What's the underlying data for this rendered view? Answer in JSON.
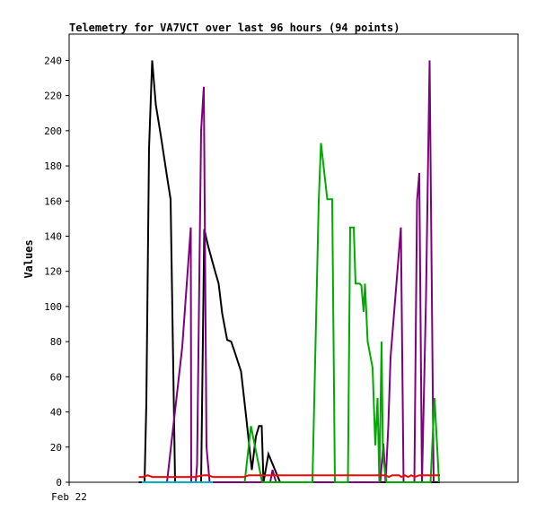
{
  "chart_data": {
    "type": "line",
    "title": "Telemetry for VA7VCT over last 96 hours (94 points)",
    "xlabel": "",
    "ylabel": "Values",
    "x_tick_labels": [
      "Feb 22"
    ],
    "xlim": [
      0,
      100
    ],
    "ylim": [
      0,
      255
    ],
    "y_ticks": [
      0,
      20,
      40,
      60,
      80,
      100,
      120,
      140,
      160,
      180,
      200,
      220,
      240
    ],
    "grid": false,
    "legend": "none",
    "series": [
      {
        "color": "#000000",
        "points": [
          [
            15.5,
            0
          ],
          [
            16.8,
            0
          ],
          [
            17.2,
            45
          ],
          [
            17.8,
            190
          ],
          [
            18.5,
            240
          ],
          [
            19.3,
            215
          ],
          [
            20.5,
            196
          ],
          [
            21.8,
            174
          ],
          [
            22.6,
            161
          ],
          [
            23.6,
            0
          ],
          [
            29.4,
            0
          ],
          [
            30.1,
            144
          ],
          [
            31.0,
            134
          ],
          [
            32.4,
            121
          ],
          [
            33.3,
            113
          ],
          [
            34.1,
            96
          ],
          [
            35.2,
            81
          ],
          [
            36.1,
            80
          ],
          [
            36.9,
            74
          ],
          [
            38.3,
            63
          ],
          [
            39.4,
            38
          ],
          [
            40.7,
            7
          ],
          [
            41.6,
            26
          ],
          [
            42.3,
            32
          ],
          [
            42.9,
            32
          ],
          [
            43.3,
            0
          ],
          [
            44.4,
            16
          ],
          [
            47.0,
            0
          ],
          [
            82.6,
            0
          ]
        ]
      },
      {
        "color": "#7f007f",
        "points": [
          [
            21.8,
            0
          ],
          [
            25.2,
            77
          ],
          [
            27.1,
            145
          ],
          [
            27.2,
            0
          ],
          [
            28.2,
            0
          ],
          [
            28.5,
            10
          ],
          [
            29.4,
            200
          ],
          [
            30.0,
            225
          ],
          [
            30.6,
            20
          ],
          [
            31.3,
            0
          ],
          [
            44.8,
            0
          ],
          [
            45.3,
            7
          ],
          [
            46.1,
            0
          ],
          [
            69.3,
            0
          ],
          [
            70.0,
            22
          ],
          [
            70.5,
            0
          ],
          [
            71.1,
            32
          ],
          [
            71.6,
            71
          ],
          [
            73.9,
            145
          ],
          [
            74.5,
            0
          ],
          [
            76.9,
            0
          ],
          [
            77.5,
            160
          ],
          [
            78.0,
            176
          ],
          [
            78.6,
            0
          ],
          [
            79.5,
            105
          ],
          [
            80.3,
            240
          ],
          [
            81.2,
            0
          ]
        ]
      },
      {
        "color": "#00aa00",
        "points": [
          [
            39.1,
            0
          ],
          [
            40.5,
            32
          ],
          [
            43.0,
            0
          ],
          [
            54.2,
            0
          ],
          [
            55.6,
            160
          ],
          [
            56.1,
            193
          ],
          [
            57.5,
            161
          ],
          [
            58.6,
            161
          ],
          [
            59.2,
            0
          ],
          [
            62.1,
            0
          ],
          [
            62.6,
            145
          ],
          [
            63.4,
            145
          ],
          [
            63.8,
            113
          ],
          [
            64.7,
            113
          ],
          [
            65.1,
            112
          ],
          [
            65.6,
            97
          ],
          [
            65.9,
            113
          ],
          [
            66.5,
            80
          ],
          [
            67.6,
            65
          ],
          [
            68.2,
            21
          ],
          [
            68.7,
            48
          ],
          [
            69.1,
            0
          ],
          [
            69.6,
            80
          ],
          [
            69.9,
            15
          ],
          [
            70.7,
            0
          ],
          [
            80.5,
            0
          ],
          [
            81.4,
            48
          ],
          [
            82.4,
            0
          ]
        ]
      },
      {
        "color": "#ff0000",
        "points": [
          [
            15.5,
            3
          ],
          [
            16.5,
            3
          ],
          [
            17.5,
            4
          ],
          [
            18.5,
            3
          ],
          [
            20.0,
            3
          ],
          [
            22.0,
            3
          ],
          [
            24.0,
            3
          ],
          [
            26.0,
            3
          ],
          [
            28.0,
            3
          ],
          [
            30.0,
            4
          ],
          [
            31.0,
            4
          ],
          [
            32.0,
            3
          ],
          [
            34.0,
            3
          ],
          [
            36.0,
            3
          ],
          [
            38.0,
            3
          ],
          [
            39.0,
            3
          ],
          [
            40.0,
            4
          ],
          [
            42.0,
            4
          ],
          [
            44.0,
            4
          ],
          [
            46.0,
            4
          ],
          [
            48.0,
            4
          ],
          [
            52.0,
            4
          ],
          [
            56.0,
            4
          ],
          [
            60.0,
            4
          ],
          [
            64.0,
            4
          ],
          [
            68.0,
            4
          ],
          [
            70.5,
            4
          ],
          [
            71.2,
            3
          ],
          [
            72.0,
            4
          ],
          [
            73.5,
            4
          ],
          [
            74.0,
            3
          ],
          [
            74.8,
            4
          ],
          [
            75.5,
            3
          ],
          [
            76.2,
            4
          ],
          [
            77.0,
            3
          ],
          [
            78.0,
            4
          ],
          [
            80.0,
            4
          ],
          [
            82.6,
            4
          ]
        ]
      },
      {
        "color": "#00b0c8",
        "points": [
          [
            16.2,
            0
          ],
          [
            21.0,
            0
          ],
          [
            22.0,
            0
          ],
          [
            28.0,
            0
          ],
          [
            30.0,
            0
          ],
          [
            32.0,
            0
          ]
        ]
      }
    ]
  }
}
